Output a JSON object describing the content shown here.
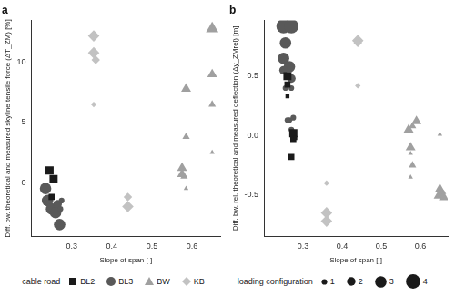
{
  "chart_data": [
    {
      "type": "scatter",
      "title": "a",
      "x_label": "Slope of span [ ]",
      "y_label": "Diff. bw. theoretical and measured skyline tensile force (ΔT_ZM) [%]",
      "xlim": [
        0.2,
        0.67
      ],
      "xticks": [
        0.3,
        0.4,
        0.5,
        0.6
      ],
      "ylim": [
        -4.5,
        13.5
      ],
      "yticks": [
        0,
        5,
        10
      ],
      "grid": false,
      "series": [
        {
          "name": "BL2",
          "color": "#1a1a1a",
          "marker": "square",
          "x": [
            0.245,
            0.255,
            0.25
          ],
          "values": [
            1.0,
            0.3,
            -1.2
          ],
          "size": [
            3,
            3,
            2
          ]
        },
        {
          "name": "BL3",
          "color": "#595959",
          "marker": "circle",
          "x": [
            0.235,
            0.24,
            0.25,
            0.26,
            0.265,
            0.27,
            0.275,
            0.272
          ],
          "values": [
            -0.5,
            -1.5,
            -2.2,
            -2.5,
            -1.8,
            -3.5,
            -1.5,
            -2.2
          ],
          "size": [
            3,
            3,
            3,
            3,
            2,
            3,
            1,
            1
          ]
        },
        {
          "name": "BW",
          "color": "#a0a0a0",
          "marker": "triangle",
          "x": [
            0.575,
            0.575,
            0.58,
            0.585,
            0.585,
            0.585,
            0.65,
            0.65,
            0.65,
            0.65
          ],
          "values": [
            1.2,
            0.7,
            0.5,
            -0.5,
            7.8,
            3.8,
            12.8,
            9.0,
            6.5,
            2.5
          ],
          "size": [
            3,
            3,
            2,
            1,
            3,
            2,
            4,
            3,
            2,
            1
          ]
        },
        {
          "name": "KB",
          "color": "#c2c2c2",
          "marker": "diamond",
          "x": [
            0.355,
            0.355,
            0.36,
            0.355,
            0.44,
            0.44
          ],
          "values": [
            12.2,
            10.8,
            10.2,
            6.5,
            -1.2,
            -2.0
          ],
          "size": [
            3,
            3,
            2,
            1,
            2,
            3
          ]
        }
      ]
    },
    {
      "type": "scatter",
      "title": "b",
      "x_label": "Slope of span [ ]",
      "y_label": "Diff. bw. rel. theoretical and measured deflection (Δy_ZMrel) [m]",
      "xlim": [
        0.2,
        0.67
      ],
      "xticks": [
        0.3,
        0.4,
        0.5,
        0.6
      ],
      "ylim": [
        -0.85,
        0.97
      ],
      "yticks": [
        -0.5,
        {
          "value": 0,
          "label": "0.0"
        },
        0.5
      ],
      "grid": false,
      "series": [
        {
          "name": "BL2",
          "color": "#1a1a1a",
          "marker": "square",
          "x": [
            0.26,
            0.26,
            0.26,
            0.275,
            0.275,
            0.27,
            0.28
          ],
          "values": [
            0.5,
            0.43,
            0.33,
            0.02,
            -0.03,
            -0.18,
            -0.02
          ],
          "size": [
            3,
            2,
            1,
            3,
            2,
            2,
            1
          ]
        },
        {
          "name": "BL3",
          "color": "#595959",
          "marker": "circle",
          "x": [
            0.25,
            0.27,
            0.255,
            0.25,
            0.265,
            0.25,
            0.27,
            0.255,
            0.27,
            0.265,
            0.275,
            0.26,
            0.27
          ],
          "values": [
            0.92,
            0.92,
            0.78,
            0.65,
            0.58,
            0.55,
            0.48,
            0.4,
            0.4,
            0.13,
            0.15,
            0.13,
            0.05
          ],
          "size": [
            4,
            4,
            3,
            3,
            3,
            2,
            2,
            1,
            1,
            1,
            1,
            1,
            1
          ]
        },
        {
          "name": "BW",
          "color": "#a0a0a0",
          "marker": "triangle",
          "x": [
            0.57,
            0.575,
            0.58,
            0.59,
            0.58,
            0.575,
            0.575,
            0.65,
            0.65,
            0.66,
            0.65,
            0.66
          ],
          "values": [
            0.05,
            -0.1,
            0.08,
            0.12,
            -0.25,
            -0.35,
            -0.15,
            -0.45,
            -0.5,
            -0.52,
            0.01,
            -0.48
          ],
          "size": [
            3,
            3,
            2,
            3,
            2,
            1,
            1,
            3,
            4,
            3,
            1,
            1
          ]
        },
        {
          "name": "KB",
          "color": "#c2c2c2",
          "marker": "diamond",
          "x": [
            0.36,
            0.36,
            0.36,
            0.44,
            0.44,
            0.44
          ],
          "values": [
            -0.4,
            -0.65,
            -0.72,
            0.8,
            0.78,
            0.42
          ],
          "size": [
            1,
            3,
            3,
            3,
            2,
            1
          ]
        }
      ]
    }
  ],
  "legend": {
    "position": "bottom",
    "series_title": "cable road",
    "size_title": "loading configuration",
    "sizes": [
      1,
      2,
      3,
      4
    ]
  }
}
